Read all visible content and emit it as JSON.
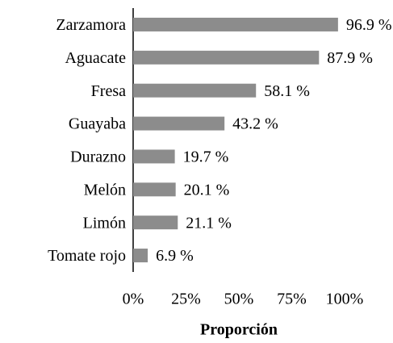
{
  "chart_data": {
    "type": "bar",
    "orientation": "horizontal",
    "categories": [
      "Zarzamora",
      "Aguacate",
      "Fresa",
      "Guayaba",
      "Durazno",
      "Melón",
      "Limón",
      "Tomate rojo"
    ],
    "values": [
      96.9,
      87.9,
      58.1,
      43.2,
      19.7,
      20.1,
      21.1,
      6.9
    ],
    "value_labels": [
      "96.9 %",
      "87.9 %",
      "58.1 %",
      "43.2 %",
      "19.7 %",
      "20.1 %",
      "21.1 %",
      "6.9 %"
    ],
    "color": "#8c8c8c",
    "xlabel": "Proporción",
    "xlim": [
      0,
      100
    ],
    "xticks": [
      {
        "value": 0,
        "label": "0%"
      },
      {
        "value": 25,
        "label": "25%"
      },
      {
        "value": 50,
        "label": "50%"
      },
      {
        "value": 75,
        "label": "75%"
      },
      {
        "value": 100,
        "label": "100%"
      }
    ]
  }
}
